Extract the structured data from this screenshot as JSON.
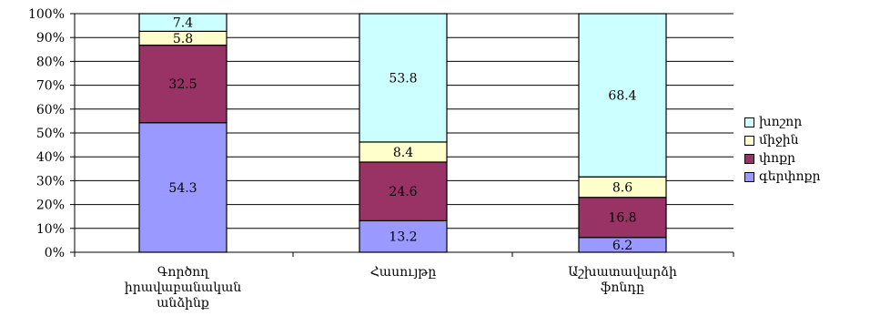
{
  "chart_data": {
    "type": "bar",
    "stacked": true,
    "percent": true,
    "categories": [
      [
        "Գործող",
        "իրավաբանական",
        "անձինք"
      ],
      [
        "Հասույթը"
      ],
      [
        "Աշխատավարձի",
        "ֆոնդը"
      ]
    ],
    "series": [
      {
        "name": "գերփոքր",
        "values": [
          54.3,
          13.2,
          6.2
        ],
        "color": "#9999ff"
      },
      {
        "name": "փոքր",
        "values": [
          32.5,
          24.6,
          16.8
        ],
        "color": "#993366"
      },
      {
        "name": "միջին",
        "values": [
          5.8,
          8.4,
          8.6
        ],
        "color": "#ffffcc"
      },
      {
        "name": "խոշոր",
        "values": [
          7.4,
          53.8,
          68.4
        ],
        "color": "#ccffff"
      }
    ],
    "ylim": [
      0,
      100
    ],
    "yticks": [
      "0%",
      "10%",
      "20%",
      "30%",
      "40%",
      "50%",
      "60%",
      "70%",
      "80%",
      "90%",
      "100%"
    ],
    "grid": true,
    "legend_position": "right",
    "title": "",
    "xlabel": "",
    "ylabel": ""
  }
}
